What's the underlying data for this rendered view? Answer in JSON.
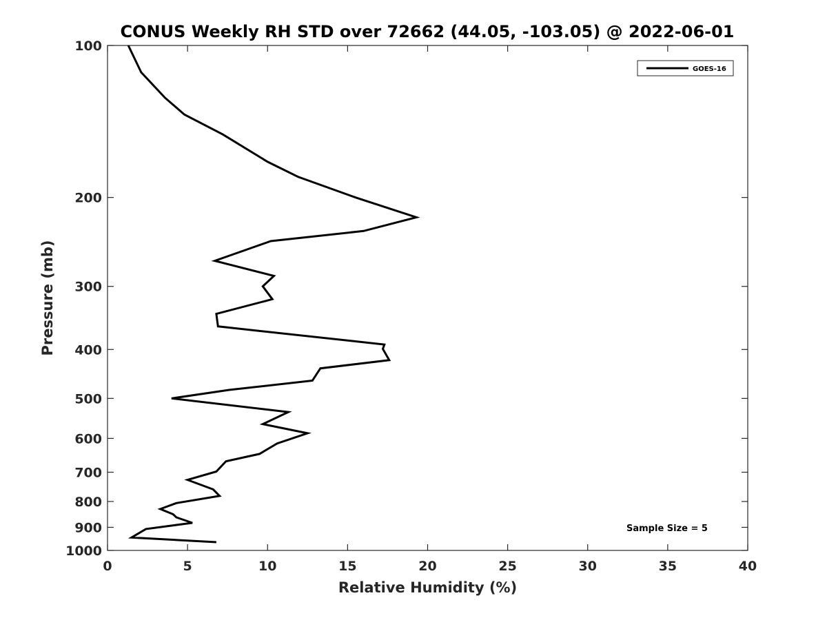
{
  "chart_data": {
    "type": "line",
    "title": "CONUS Weekly RH STD over 72662 (44.05, -103.05) @ 2022-06-01",
    "xlabel": "Relative Humidity (%)",
    "ylabel": "Pressure (mb)",
    "xlim": [
      0,
      40
    ],
    "ylim": [
      100,
      1000
    ],
    "yscale": "log",
    "y_reversed": true,
    "x_ticks": [
      "0",
      "5",
      "10",
      "15",
      "20",
      "25",
      "30",
      "35",
      "40"
    ],
    "y_ticks": [
      "100",
      "200",
      "300",
      "400",
      "500",
      "600",
      "700",
      "800",
      "900",
      "1000"
    ],
    "grid": false,
    "legend_position": "top-right",
    "annotation": "Sample Size = 5",
    "series": [
      {
        "name": "GOES-16",
        "color": "#000000",
        "x": [
          1.3,
          2.1,
          3.6,
          4.8,
          7.2,
          10.0,
          11.9,
          15.5,
          19.3,
          16.0,
          10.2,
          6.7,
          10.4,
          9.7,
          10.3,
          6.8,
          6.9,
          17.3,
          17.2,
          17.6,
          13.3,
          12.8,
          7.6,
          4.0,
          11.3,
          9.7,
          12.5,
          10.6,
          9.5,
          7.4,
          6.8,
          5.0,
          6.6,
          7.0,
          4.3,
          3.3,
          4.1,
          4.3,
          5.3,
          2.4,
          1.5,
          6.8
        ],
        "y": [
          100,
          113,
          127,
          137,
          150,
          170,
          182,
          200,
          219,
          233,
          244,
          267,
          286,
          300,
          318,
          340,
          360,
          391,
          399,
          420,
          436,
          461,
          481,
          500,
          532,
          562,
          586,
          614,
          644,
          666,
          698,
          725,
          757,
          780,
          806,
          828,
          848,
          860,
          882,
          907,
          943,
          963
        ]
      }
    ]
  }
}
